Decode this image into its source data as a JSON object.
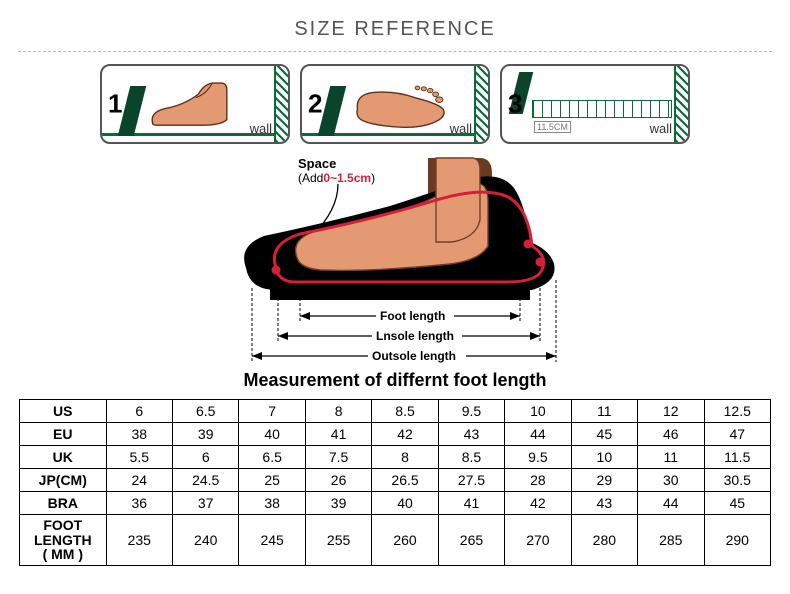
{
  "header": {
    "title": "SIZE REFERENCE"
  },
  "steps": {
    "items": [
      {
        "num": "1",
        "wall": "wall"
      },
      {
        "num": "2",
        "wall": "wall"
      },
      {
        "num": "3",
        "wall": "wall",
        "ruler_label": "11.5CM"
      }
    ]
  },
  "diagram": {
    "space_label_line1": "Space",
    "space_label_line2": "(Add",
    "space_range": "0~1.5cm",
    "space_close": ")",
    "foot_length_label": "Foot length",
    "insole_length_label": "Lnsole length",
    "outsole_length_label": "Outsole length",
    "caption": "Measurement of differnt foot length",
    "colors": {
      "skin": "#e39a73",
      "skin_dark": "#9c5b3e",
      "outline": "#000000",
      "sole_black": "#000000",
      "accent_red": "#d4213a",
      "green": "#0a6b3a"
    }
  },
  "table": {
    "rows": [
      {
        "label": "US",
        "cells": [
          "6",
          "6.5",
          "7",
          "8",
          "8.5",
          "9.5",
          "10",
          "11",
          "12",
          "12.5"
        ]
      },
      {
        "label": "EU",
        "cells": [
          "38",
          "39",
          "40",
          "41",
          "42",
          "43",
          "44",
          "45",
          "46",
          "47"
        ]
      },
      {
        "label": "UK",
        "cells": [
          "5.5",
          "6",
          "6.5",
          "7.5",
          "8",
          "8.5",
          "9.5",
          "10",
          "11",
          "11.5"
        ]
      },
      {
        "label": "JP(CM)",
        "cells": [
          "24",
          "24.5",
          "25",
          "26",
          "26.5",
          "27.5",
          "28",
          "29",
          "30",
          "30.5"
        ]
      },
      {
        "label": "BRA",
        "cells": [
          "36",
          "37",
          "38",
          "39",
          "40",
          "41",
          "42",
          "43",
          "44",
          "45"
        ]
      },
      {
        "label": "FOOT LENGTH\n( MM )",
        "cells": [
          "235",
          "240",
          "245",
          "255",
          "260",
          "265",
          "270",
          "280",
          "285",
          "290"
        ],
        "small": true
      }
    ]
  }
}
